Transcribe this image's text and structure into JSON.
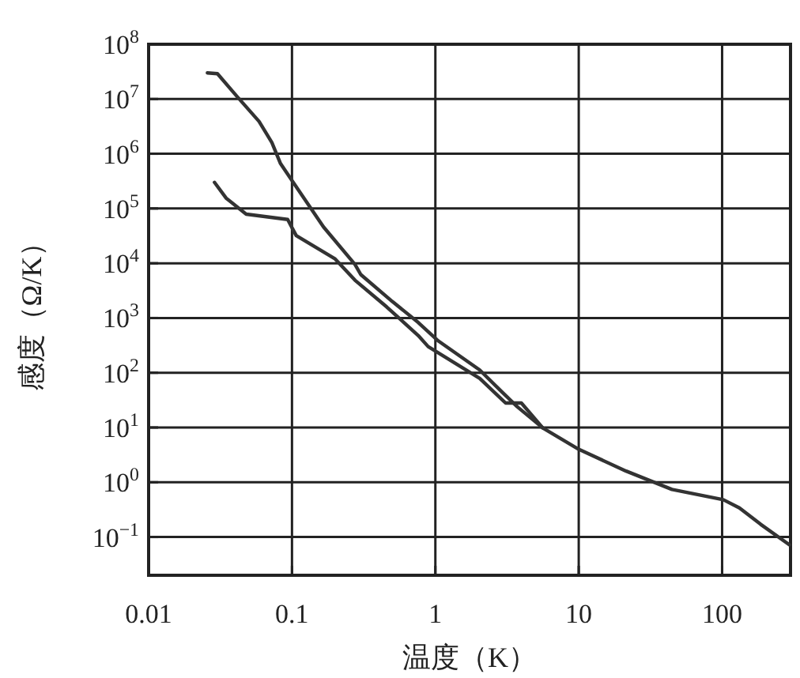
{
  "chart_data": {
    "type": "line",
    "xlabel": "温度（K）",
    "ylabel": "感度（Ω/K）",
    "log": "xy",
    "grid": true,
    "marker": "none",
    "line_style": "solid",
    "xlim": [
      0.01,
      300
    ],
    "ylim": [
      0.02,
      100000000
    ],
    "xticks": [
      0.01,
      0.1,
      1,
      10,
      100
    ],
    "yticks": [
      {
        "value": 0.1,
        "label": "10$^{−1}$"
      },
      {
        "value": 1,
        "label": "10$^{0}$"
      },
      {
        "value": 10,
        "label": "10$^{1}$"
      },
      {
        "value": 100,
        "label": "10$^{2}$"
      },
      {
        "value": 1000,
        "label": "10$^{3}$"
      },
      {
        "value": 10000,
        "label": "10$^{4}$"
      },
      {
        "value": 100000,
        "label": "10$^{5}$"
      },
      {
        "value": 1000000,
        "label": "10$^{6}$"
      },
      {
        "value": 10000000,
        "label": "10$^{7}$"
      },
      {
        "value": 100000000,
        "label": "10$^{8}$"
      }
    ],
    "series": [
      {
        "color": "#333333",
        "x": [
          0.0257,
          0.0302,
          0.0407,
          0.0589,
          0.0724,
          0.0832,
          0.102,
          0.166,
          0.275,
          0.302,
          0.501,
          0.759,
          1.05,
          2.04,
          2.88,
          3.72,
          5.62,
          10,
          21.4,
          44.7,
          102,
          132,
          186,
          295
        ],
        "values": [
          30000000,
          29000000,
          11700000,
          3900000,
          1600000,
          660000,
          300000,
          46000,
          9500,
          6200,
          2000,
          830,
          380,
          112,
          46,
          24,
          9.8,
          4.0,
          1.6,
          0.74,
          0.48,
          0.34,
          0.17,
          0.072
        ]
      },
      {
        "color": "#333333",
        "x": [
          0.0288,
          0.0347,
          0.0479,
          0.0933,
          0.107,
          0.2,
          0.275,
          0.457,
          0.759,
          0.891,
          2.04,
          3.09,
          3.98,
          5.62
        ],
        "values": [
          300000,
          155000,
          79000,
          63000,
          32000,
          12000,
          4900,
          1600,
          480,
          300,
          79,
          28,
          28,
          9.8
        ]
      }
    ]
  }
}
